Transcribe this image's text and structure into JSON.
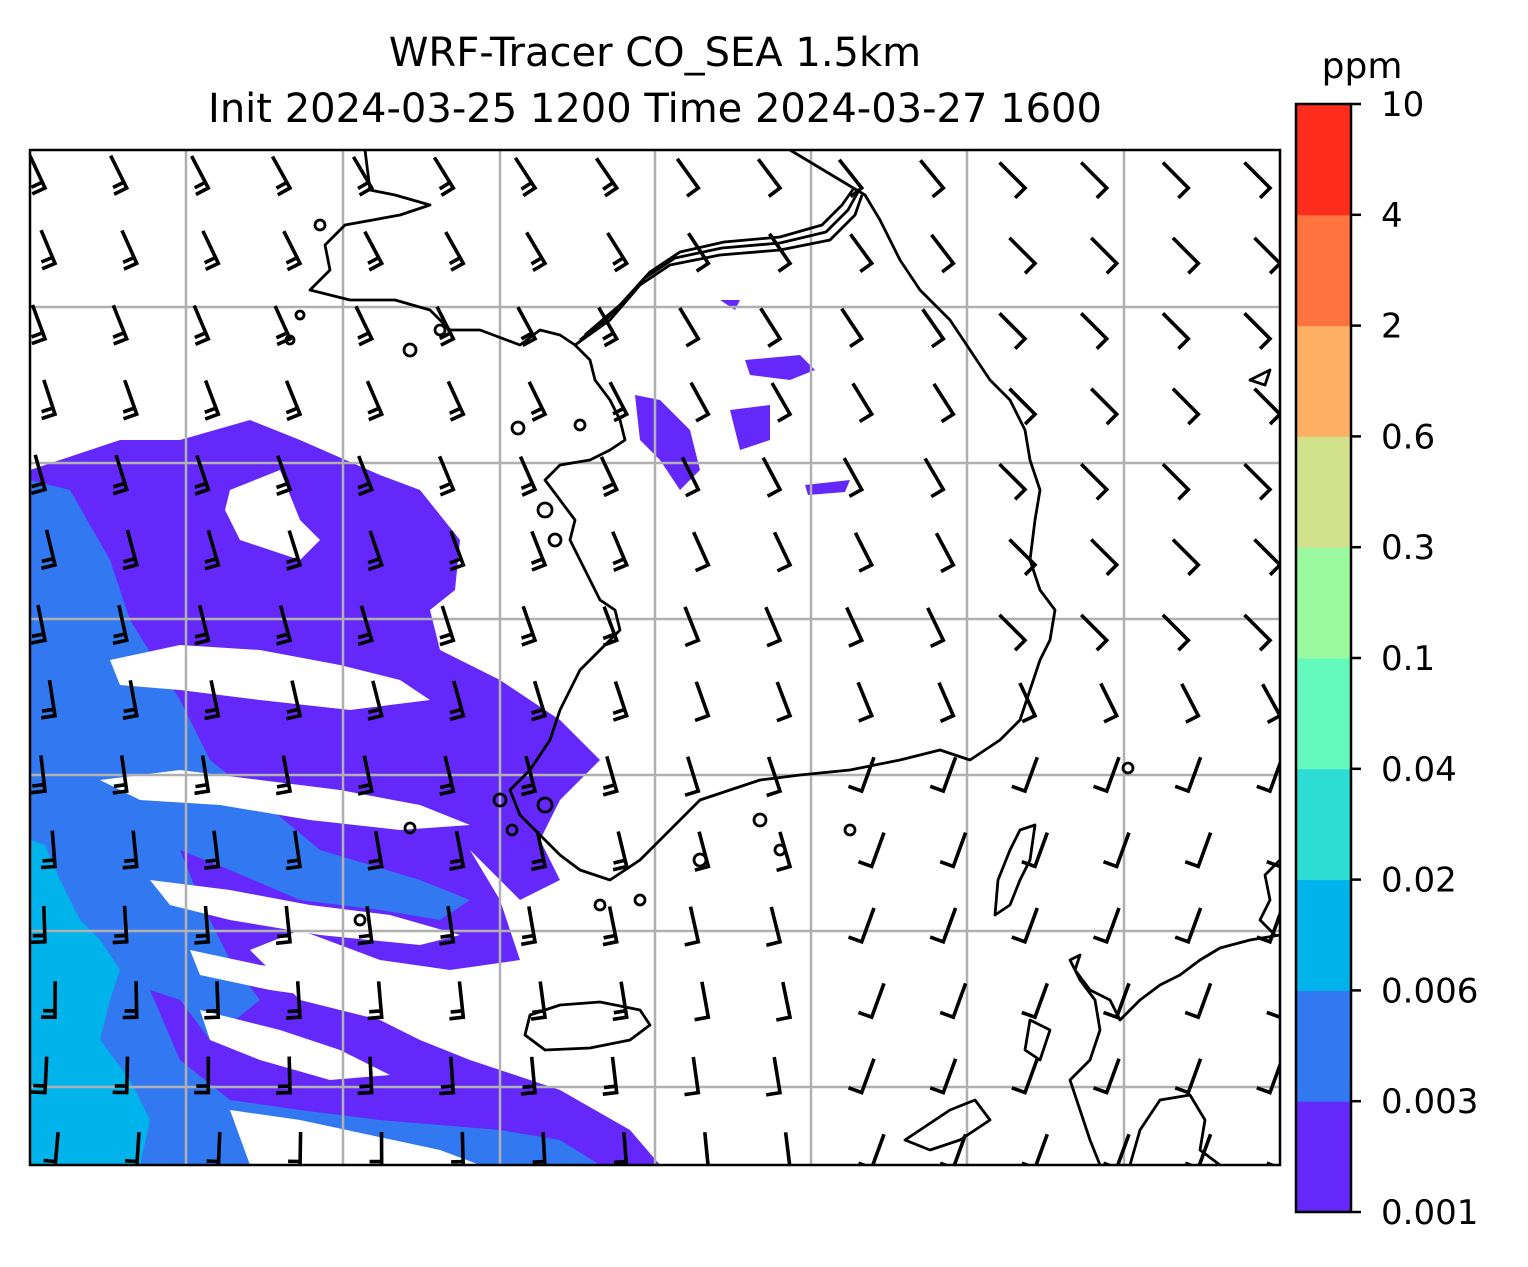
{
  "title": {
    "line1": "WRF-Tracer CO_SEA 1.5km",
    "line2": "Init 2024-03-25 1200 Time 2024-03-27 1600"
  },
  "colorbar": {
    "unit": "ppm",
    "levels": [
      "0.001",
      "0.003",
      "0.006",
      "0.02",
      "0.04",
      "0.1",
      "0.3",
      "0.6",
      "2",
      "4",
      "10"
    ],
    "colors": [
      "#6428fa",
      "#3278f0",
      "#00b4eb",
      "#2ddcd2",
      "#64fabe",
      "#9bfaa0",
      "#d2e18c",
      "#ffaf64",
      "#ff7340",
      "#ff2d1e"
    ]
  },
  "map": {
    "grid_color": "#b0b0b0",
    "coast_color": "#000000",
    "shading": [
      "0.001-0.003",
      "0.003-0.006",
      "0.006-0.02"
    ],
    "wind_barbs": true
  }
}
